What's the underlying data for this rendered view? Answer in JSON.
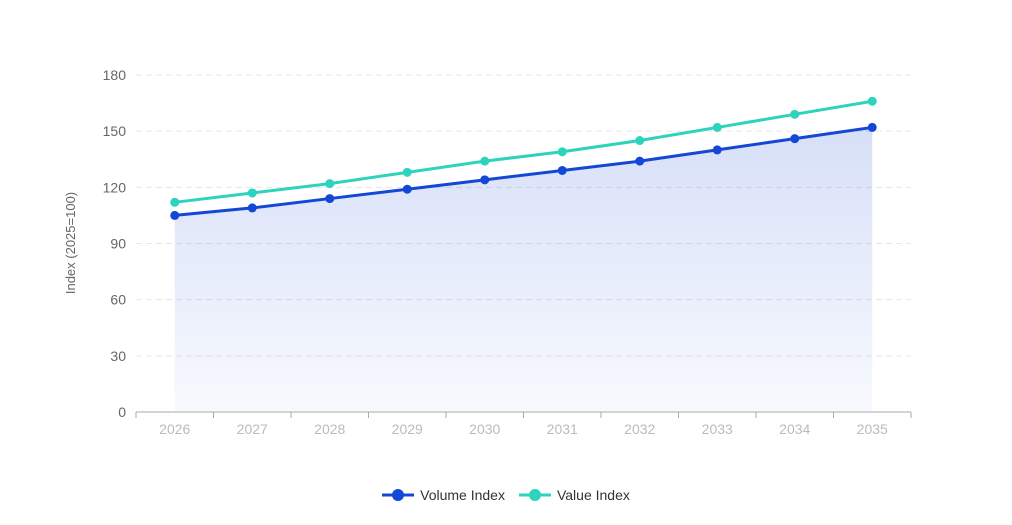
{
  "chart_data": {
    "type": "line",
    "title": "",
    "xlabel": "",
    "ylabel": "Index (2025=100)",
    "categories": [
      "2026",
      "2027",
      "2028",
      "2029",
      "2030",
      "2031",
      "2032",
      "2033",
      "2034",
      "2035"
    ],
    "series": [
      {
        "name": "Volume Index",
        "color": "#1447d6",
        "area": true,
        "values": [
          105,
          109,
          114,
          119,
          124,
          129,
          134,
          140,
          146,
          152
        ]
      },
      {
        "name": "Value Index",
        "color": "#2ed3bd",
        "area": false,
        "values": [
          112,
          117,
          122,
          128,
          134,
          139,
          145,
          152,
          159,
          166
        ]
      }
    ],
    "ylim": [
      0,
      180
    ],
    "yticks": [
      0,
      30,
      60,
      90,
      120,
      150,
      180
    ],
    "grid": true,
    "legend_position": "bottom"
  },
  "legend": {
    "items": [
      {
        "label": "Volume Index",
        "color": "#1447d6"
      },
      {
        "label": "Value Index",
        "color": "#2ed3bd"
      }
    ]
  }
}
